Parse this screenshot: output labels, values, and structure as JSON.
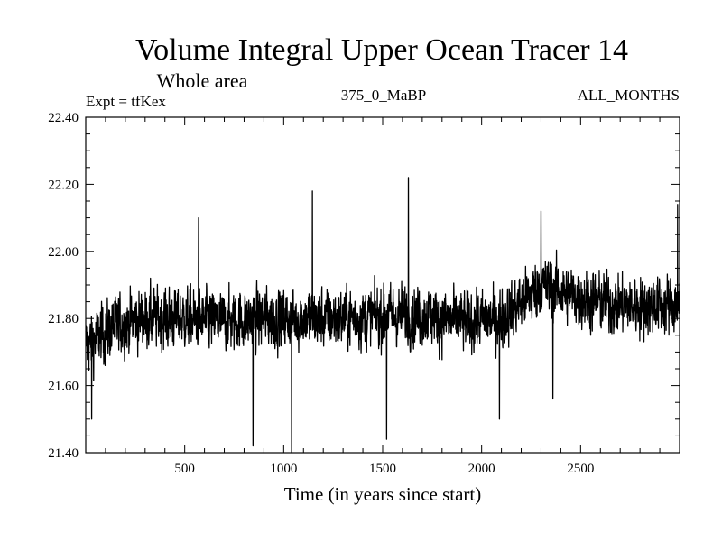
{
  "chart_data": {
    "type": "line",
    "title": "Volume Integral Upper Ocean Tracer 14",
    "subtitle": "Whole area",
    "annotations": {
      "left": "Expt = tfKex",
      "center": "375_0_MaBP",
      "right": "ALL_MONTHS"
    },
    "xlabel": "Time (in years since start)",
    "ylabel": "",
    "xlim": [
      0,
      3000
    ],
    "ylim": [
      21.4,
      22.4
    ],
    "x_ticks": [
      500,
      1000,
      1500,
      2000,
      2500
    ],
    "y_ticks": [
      "21.40",
      "21.60",
      "21.80",
      "22.00",
      "22.20",
      "22.40"
    ],
    "grid": false,
    "series": [
      {
        "name": "",
        "color": "#000000",
        "x_step": 1,
        "x_start": 0,
        "baseline": [
          [
            0,
            21.72
          ],
          [
            150,
            21.78
          ],
          [
            300,
            21.8
          ],
          [
            500,
            21.8
          ],
          [
            700,
            21.79
          ],
          [
            900,
            21.8
          ],
          [
            1100,
            21.8
          ],
          [
            1300,
            21.8
          ],
          [
            1500,
            21.81
          ],
          [
            1700,
            21.81
          ],
          [
            1900,
            21.79
          ],
          [
            2100,
            21.8
          ],
          [
            2300,
            21.9
          ],
          [
            2500,
            21.86
          ],
          [
            2700,
            21.84
          ],
          [
            3000,
            21.84
          ]
        ],
        "spread": 0.075,
        "extremes": [
          [
            30,
            21.5
          ],
          [
            845,
            21.42
          ],
          [
            1040,
            21.4
          ],
          [
            1145,
            22.18
          ],
          [
            1520,
            21.44
          ],
          [
            1630,
            22.22
          ],
          [
            2090,
            21.5
          ],
          [
            2300,
            22.12
          ],
          [
            2360,
            21.56
          ],
          [
            570,
            22.1
          ],
          [
            2990,
            22.14
          ]
        ]
      }
    ]
  }
}
